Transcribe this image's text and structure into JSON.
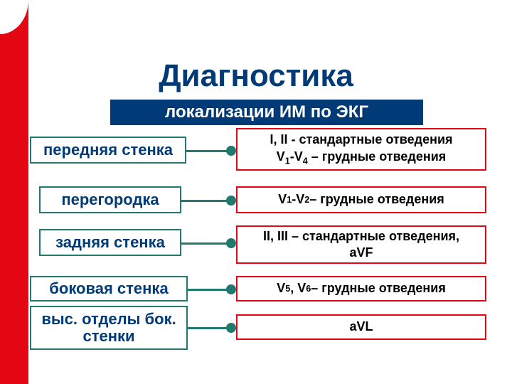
{
  "type": "infographic",
  "background_color": "#ffffff",
  "sidebar_color": "#e30613",
  "title": {
    "text": "Диагностика",
    "color": "#003b77",
    "fontsize": 44
  },
  "subtitle": {
    "text": "локализации ИМ по ЭКГ",
    "bg": "#003b77",
    "color": "#ffffff",
    "fontsize": 24
  },
  "left_box_style": {
    "border_color": "#1f7a6f",
    "text_color": "#003b77",
    "fontsize": 22
  },
  "right_box_style": {
    "border_color": "#e30613",
    "text_color": "#000000",
    "fontsize": 18
  },
  "connector_color": "#1f7a6f",
  "rows": {
    "r1": {
      "left": "передняя стенка",
      "right_line1": "I, II -  стандартные отведения",
      "right_line2_html": "V<sub>1</sub>-V<sub>4</sub> – грудные отведения"
    },
    "r2": {
      "left": "перегородка",
      "right_html": "V<sub>1</sub>-V<sub>2</sub> – грудные отведения"
    },
    "r3": {
      "left": "задняя стенка",
      "right_line1": "II, III – стандартные отведения,",
      "right_line2": "aVF"
    },
    "r4": {
      "left": "боковая стенка",
      "right_html": "V<sub>5</sub>, V<sub>6</sub> – грудные отведения"
    },
    "r5": {
      "left_line1": "выс. отделы бок.",
      "left_line2": "стенки",
      "right": "aVL"
    }
  }
}
